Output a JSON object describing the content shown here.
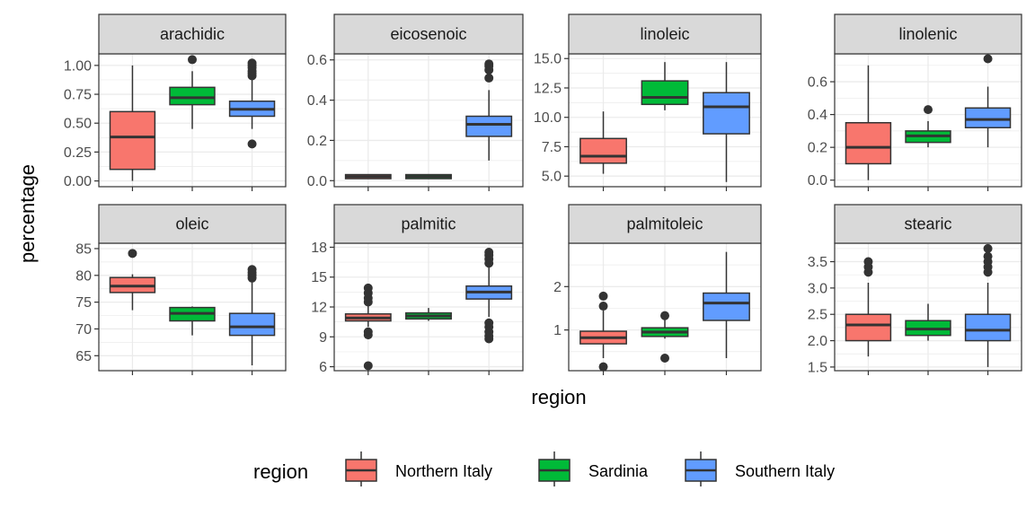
{
  "chart_data": {
    "type": "boxplot",
    "facet_var": "variable",
    "xlabel": "region",
    "ylabel": "percentage",
    "categories": [
      "Northern Italy",
      "Sardinia",
      "Southern Italy"
    ],
    "legend": {
      "title": "region",
      "position": "bottom",
      "entries": [
        "Northern Italy",
        "Sardinia",
        "Southern Italy"
      ]
    },
    "colors": {
      "Northern Italy": "#F8766D",
      "Sardinia": "#00BA38",
      "Southern Italy": "#619CFF",
      "strip_bg": "#D9D9D9",
      "grid": "#EBEBEB"
    },
    "grid": true,
    "facets": [
      {
        "name": "arachidic",
        "ylim": [
          -0.05,
          1.1
        ],
        "ticks": [
          0.0,
          0.25,
          0.5,
          0.75,
          1.0
        ],
        "tick_labels": [
          "0.00",
          "0.25",
          "0.50",
          "0.75",
          "1.00"
        ],
        "boxes": [
          {
            "q1": 0.1,
            "median": 0.38,
            "q3": 0.6,
            "lo": 0.0,
            "hi": 1.0,
            "outliers": []
          },
          {
            "q1": 0.66,
            "median": 0.72,
            "q3": 0.81,
            "lo": 0.45,
            "hi": 0.95,
            "outliers": [
              1.05
            ]
          },
          {
            "q1": 0.56,
            "median": 0.62,
            "q3": 0.69,
            "lo": 0.45,
            "hi": 0.88,
            "outliers": [
              0.32,
              0.91,
              0.93,
              0.95,
              0.98,
              1.0,
              1.02
            ]
          }
        ]
      },
      {
        "name": "eicosenoic",
        "ylim": [
          -0.03,
          0.63
        ],
        "ticks": [
          0.0,
          0.2,
          0.4,
          0.6
        ],
        "tick_labels": [
          "0.0",
          "0.2",
          "0.4",
          "0.6"
        ],
        "boxes": [
          {
            "q1": 0.01,
            "median": 0.02,
            "q3": 0.03,
            "lo": 0.01,
            "hi": 0.03,
            "outliers": []
          },
          {
            "q1": 0.01,
            "median": 0.02,
            "q3": 0.03,
            "lo": 0.01,
            "hi": 0.03,
            "outliers": []
          },
          {
            "q1": 0.22,
            "median": 0.28,
            "q3": 0.32,
            "lo": 0.1,
            "hi": 0.45,
            "outliers": [
              0.51,
              0.55,
              0.57,
              0.58
            ]
          }
        ]
      },
      {
        "name": "linoleic",
        "ylim": [
          4.1,
          15.4
        ],
        "ticks": [
          5.0,
          7.5,
          10.0,
          12.5,
          15.0
        ],
        "tick_labels": [
          "5.0",
          "7.5",
          "10.0",
          "12.5",
          "15.0"
        ],
        "boxes": [
          {
            "q1": 6.1,
            "median": 6.7,
            "q3": 8.2,
            "lo": 5.2,
            "hi": 10.5,
            "outliers": []
          },
          {
            "q1": 11.1,
            "median": 11.7,
            "q3": 13.1,
            "lo": 10.6,
            "hi": 14.7,
            "outliers": []
          },
          {
            "q1": 8.6,
            "median": 10.9,
            "q3": 12.1,
            "lo": 4.5,
            "hi": 14.7,
            "outliers": []
          }
        ]
      },
      {
        "name": "linolenic",
        "ylim": [
          -0.04,
          0.77
        ],
        "ticks": [
          0.0,
          0.2,
          0.4,
          0.6
        ],
        "tick_labels": [
          "0.0",
          "0.2",
          "0.4",
          "0.6"
        ],
        "boxes": [
          {
            "q1": 0.1,
            "median": 0.2,
            "q3": 0.35,
            "lo": 0.0,
            "hi": 0.7,
            "outliers": []
          },
          {
            "q1": 0.23,
            "median": 0.27,
            "q3": 0.3,
            "lo": 0.2,
            "hi": 0.36,
            "outliers": [
              0.43
            ]
          },
          {
            "q1": 0.32,
            "median": 0.37,
            "q3": 0.44,
            "lo": 0.2,
            "hi": 0.57,
            "outliers": [
              0.74
            ]
          }
        ]
      },
      {
        "name": "oleic",
        "ylim": [
          62.2,
          86.0
        ],
        "ticks": [
          65,
          70,
          75,
          80,
          85
        ],
        "tick_labels": [
          "65",
          "70",
          "75",
          "80",
          "85"
        ],
        "boxes": [
          {
            "q1": 76.8,
            "median": 78.0,
            "q3": 79.6,
            "lo": 73.5,
            "hi": 80.2,
            "outliers": [
              84.1
            ]
          },
          {
            "q1": 71.5,
            "median": 72.9,
            "q3": 74.0,
            "lo": 68.8,
            "hi": 74.2,
            "outliers": []
          },
          {
            "q1": 68.8,
            "median": 70.4,
            "q3": 72.9,
            "lo": 63.2,
            "hi": 79.0,
            "outliers": [
              79.5,
              80.0,
              80.5,
              81.1
            ]
          }
        ]
      },
      {
        "name": "palmitic",
        "ylim": [
          5.6,
          18.4
        ],
        "ticks": [
          6,
          9,
          12,
          15,
          18
        ],
        "tick_labels": [
          "6",
          "9",
          "12",
          "15",
          "18"
        ],
        "boxes": [
          {
            "q1": 10.6,
            "median": 10.9,
            "q3": 11.3,
            "lo": 10.0,
            "hi": 12.2,
            "outliers": [
              6.1,
              9.2,
              9.5,
              12.5,
              12.9,
              13.4,
              13.9
            ]
          },
          {
            "q1": 10.8,
            "median": 11.1,
            "q3": 11.4,
            "lo": 10.6,
            "hi": 11.9,
            "outliers": []
          },
          {
            "q1": 12.8,
            "median": 13.5,
            "q3": 14.1,
            "lo": 11.0,
            "hi": 16.0,
            "outliers": [
              8.8,
              9.1,
              9.5,
              10.0,
              10.4,
              16.4,
              16.8,
              17.2,
              17.5
            ]
          }
        ]
      },
      {
        "name": "palmitoleic",
        "ylim": [
          0.06,
          3.0
        ],
        "ticks": [
          1,
          2
        ],
        "tick_labels": [
          "1",
          "2"
        ],
        "boxes": [
          {
            "q1": 0.68,
            "median": 0.82,
            "q3": 0.97,
            "lo": 0.35,
            "hi": 1.45,
            "outliers": [
              0.15,
              1.55,
              1.78
            ]
          },
          {
            "q1": 0.85,
            "median": 0.95,
            "q3": 1.05,
            "lo": 0.8,
            "hi": 1.25,
            "outliers": [
              0.35,
              1.33
            ]
          },
          {
            "q1": 1.22,
            "median": 1.62,
            "q3": 1.85,
            "lo": 0.35,
            "hi": 2.8,
            "outliers": []
          }
        ]
      },
      {
        "name": "stearic",
        "ylim": [
          1.43,
          3.85
        ],
        "ticks": [
          1.5,
          2.0,
          2.5,
          3.0,
          3.5
        ],
        "tick_labels": [
          "1.5",
          "2.0",
          "2.5",
          "3.0",
          "3.5"
        ],
        "boxes": [
          {
            "q1": 2.0,
            "median": 2.3,
            "q3": 2.5,
            "lo": 1.7,
            "hi": 3.1,
            "outliers": [
              3.3,
              3.4,
              3.5
            ]
          },
          {
            "q1": 2.1,
            "median": 2.22,
            "q3": 2.38,
            "lo": 2.0,
            "hi": 2.7,
            "outliers": []
          },
          {
            "q1": 2.0,
            "median": 2.2,
            "q3": 2.5,
            "lo": 1.5,
            "hi": 3.1,
            "outliers": [
              3.3,
              3.4,
              3.5,
              3.6,
              3.75
            ]
          }
        ]
      }
    ]
  }
}
